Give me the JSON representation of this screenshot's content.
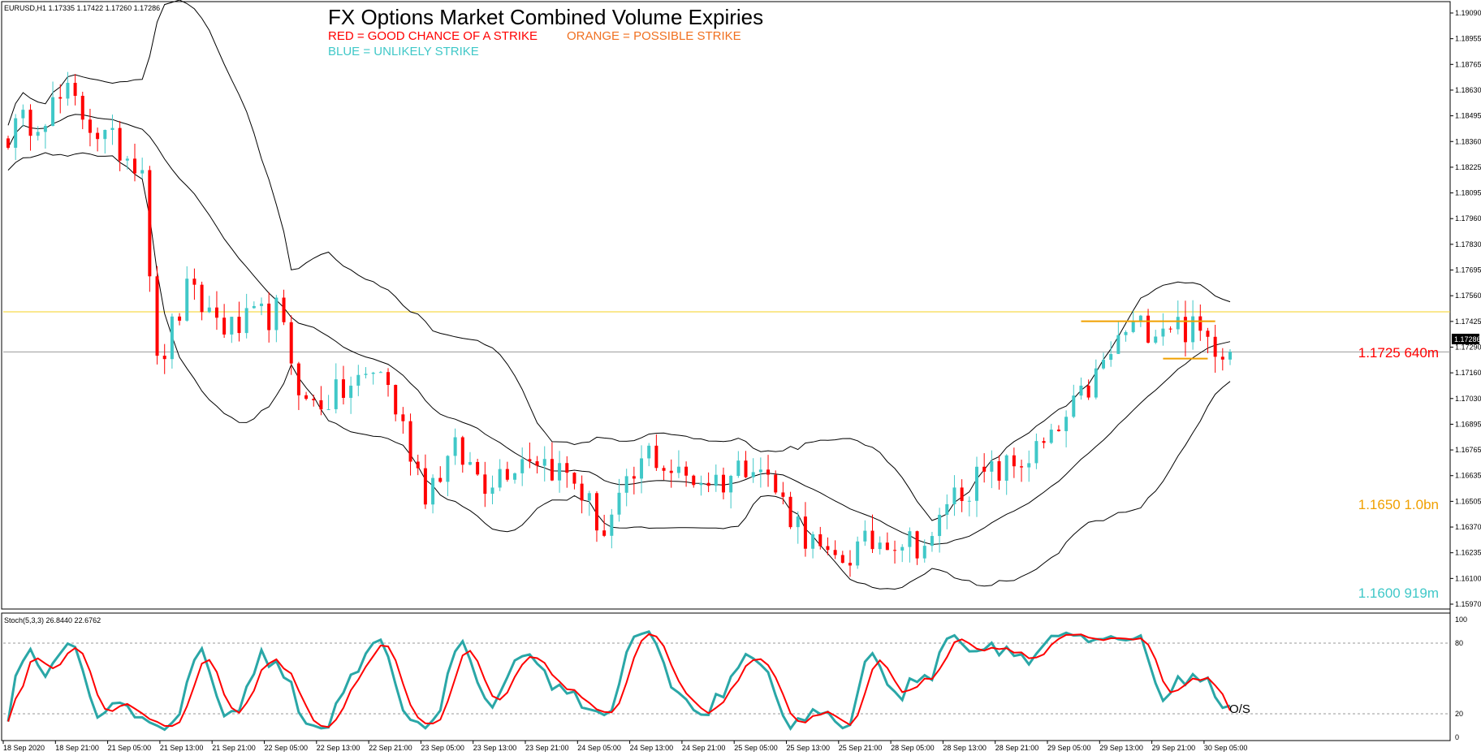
{
  "header": {
    "symbol_info": "EURUSD,H1  1.17335 1.17422 1.17260 1.17286",
    "title": "FX Options Market Combined Volume Expiries",
    "legend_red": "RED = GOOD CHANCE OF A STRIKE",
    "legend_orange": "ORANGE = POSSIBLE STRIKE",
    "legend_blue": "BLUE = UNLIKELY STRIKE"
  },
  "colors": {
    "bull": "#40c8c8",
    "bear": "#ff0000",
    "orange": "#f0a000",
    "gold": "#f5d020",
    "stoch_main": "#2aa7a7",
    "stoch_signal": "#ff0000",
    "band": "#000000"
  },
  "annotations": {
    "red_expiry": "1.1725 640m",
    "orange_expiry": "1.1650 1.0bn",
    "blue_expiry": "1.1600 919m",
    "current_price": "1.17286",
    "stoch_note": "O/S"
  },
  "stoch": {
    "label": "Stoch(5,3,3) 26.8440 22.6762",
    "ticks": [
      "100",
      "80",
      "20",
      "0"
    ]
  },
  "chart_data": [
    {
      "type": "candlestick",
      "symbol": "EURUSD",
      "timeframe": "H1",
      "y_ticks": [
        "1.19090",
        "1.18955",
        "1.18765",
        "1.18630",
        "1.18495",
        "1.18360",
        "1.18225",
        "1.18095",
        "1.17960",
        "1.17830",
        "1.17695",
        "1.17560",
        "1.17425",
        "1.17290",
        "1.17160",
        "1.17030",
        "1.16895",
        "1.16765",
        "1.16635",
        "1.16505",
        "1.16370",
        "1.16235",
        "1.16100",
        "1.15970"
      ],
      "ylim": [
        1.1592,
        1.1915
      ],
      "x_ticks": [
        "18 Sep 2020",
        "18 Sep 21:00",
        "21 Sep 05:00",
        "21 Sep 13:00",
        "21 Sep 21:00",
        "22 Sep 05:00",
        "22 Sep 13:00",
        "22 Sep 21:00",
        "23 Sep 05:00",
        "23 Sep 13:00",
        "23 Sep 21:00",
        "24 Sep 05:00",
        "24 Sep 13:00",
        "24 Sep 21:00",
        "25 Sep 05:00",
        "25 Sep 13:00",
        "25 Sep 21:00",
        "28 Sep 05:00",
        "28 Sep 13:00",
        "28 Sep 21:00",
        "29 Sep 05:00",
        "29 Sep 13:00",
        "29 Sep 21:00",
        "30 Sep 05:00"
      ],
      "path": [
        [
          0,
          1.1845
        ],
        [
          8,
          1.1865
        ],
        [
          13,
          1.1842
        ],
        [
          18,
          1.183
        ],
        [
          20,
          1.172
        ],
        [
          24,
          1.176
        ],
        [
          30,
          1.174
        ],
        [
          36,
          1.175
        ],
        [
          40,
          1.17
        ],
        [
          44,
          1.1705
        ],
        [
          50,
          1.172
        ],
        [
          56,
          1.1655
        ],
        [
          60,
          1.1675
        ],
        [
          64,
          1.166
        ],
        [
          70,
          1.1675
        ],
        [
          76,
          1.166
        ],
        [
          80,
          1.1632
        ],
        [
          86,
          1.1675
        ],
        [
          90,
          1.1662
        ],
        [
          96,
          1.166
        ],
        [
          100,
          1.1673
        ],
        [
          104,
          1.1648
        ],
        [
          110,
          1.1615
        ],
        [
          118,
          1.163
        ],
        [
          124,
          1.1625
        ],
        [
          126,
          1.165
        ],
        [
          130,
          1.166
        ],
        [
          135,
          1.1668
        ],
        [
          140,
          1.168
        ],
        [
          146,
          1.1715
        ],
        [
          150,
          1.174
        ],
        [
          156,
          1.1745
        ],
        [
          160,
          1.1738
        ],
        [
          164,
          1.1729
        ]
      ],
      "overlay_lines": [
        {
          "color": "gold",
          "price": 1.175
        },
        {
          "color": "gray",
          "price": 1.17286
        }
      ],
      "strike_lines": [
        {
          "color": "orange",
          "price": 1.1745,
          "from": 144,
          "to": 162
        },
        {
          "color": "orange",
          "price": 1.1725,
          "from": 155,
          "to": 161
        }
      ]
    },
    {
      "type": "line",
      "name": "Stoch(5,3,3)",
      "ylim": [
        0,
        100
      ],
      "levels": [
        80,
        20
      ],
      "last": {
        "main": 26.844,
        "signal": 22.6762
      }
    }
  ]
}
